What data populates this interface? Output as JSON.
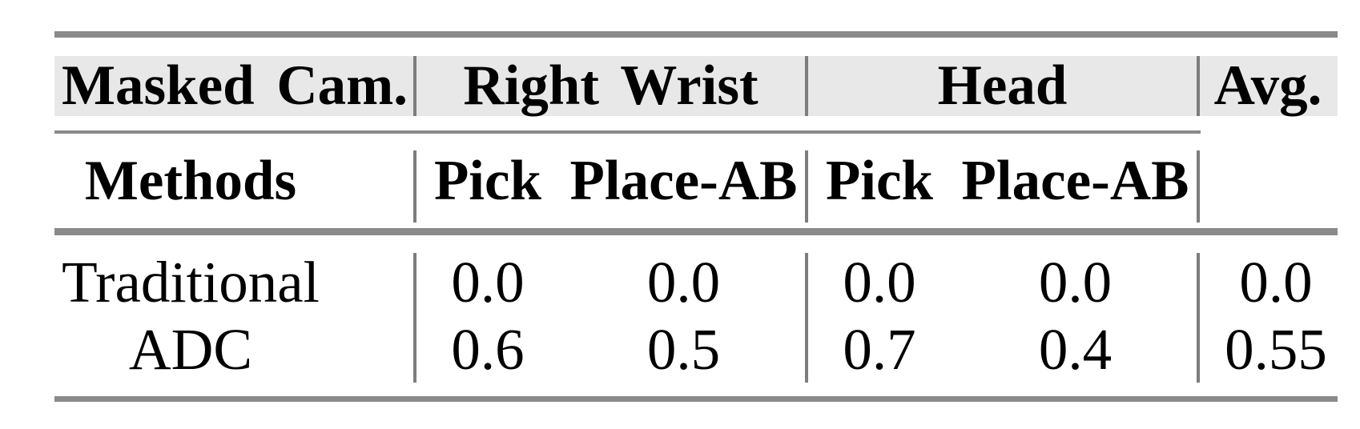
{
  "colors": {
    "background": "#ffffff",
    "band": "#e8e8e8",
    "rule": "#8a8a8a",
    "vline": "#7d7d7d",
    "text": "#000000"
  },
  "table": {
    "header_row1": {
      "masked_cam": "Masked Cam.",
      "right_wrist": "Right Wrist",
      "head": "Head",
      "avg": "Avg."
    },
    "header_row2": {
      "methods": "Methods",
      "right_wrist_pick": "Pick",
      "right_wrist_place_ab": "Place-AB",
      "head_pick": "Pick",
      "head_place_ab": "Place-AB"
    },
    "rows": [
      {
        "method": "Traditional",
        "right_wrist_pick": "0.0",
        "right_wrist_place_ab": "0.0",
        "head_pick": "0.0",
        "head_place_ab": "0.0",
        "avg": "0.0"
      },
      {
        "method": "ADC",
        "right_wrist_pick": "0.6",
        "right_wrist_place_ab": "0.5",
        "head_pick": "0.7",
        "head_place_ab": "0.4",
        "avg": "0.55"
      }
    ]
  }
}
